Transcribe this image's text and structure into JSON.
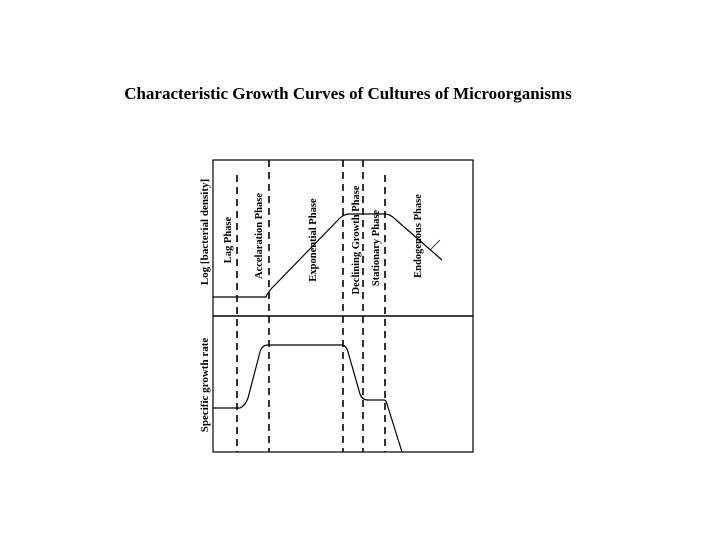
{
  "title": "Characteristic Growth Curves of Cultures of Microorganisms",
  "axes": {
    "upper": "Log [bacterial density]",
    "lower": "Specific growth rate"
  },
  "phases": [
    "Lag Phase",
    "Accelaration Phase",
    "Exponential Phase",
    "Declining Growth Phase",
    "Stationary Phase",
    "Endogenous Phase"
  ]
}
